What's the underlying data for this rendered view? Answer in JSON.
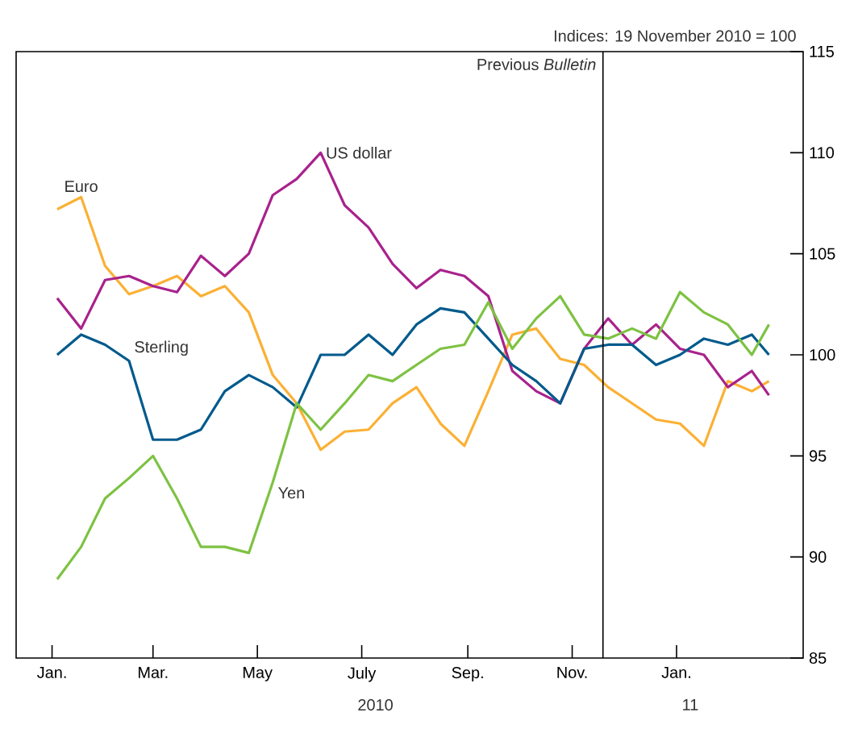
{
  "chart_data": {
    "type": "line",
    "title": "Indices: 19 November 2010 = 100",
    "x": [
      "2010-01-04",
      "2010-01-18",
      "2010-02-01",
      "2010-02-15",
      "2010-03-01",
      "2010-03-15",
      "2010-03-29",
      "2010-04-12",
      "2010-04-26",
      "2010-05-10",
      "2010-05-24",
      "2010-06-07",
      "2010-06-21",
      "2010-07-05",
      "2010-07-19",
      "2010-08-02",
      "2010-08-16",
      "2010-08-30",
      "2010-09-13",
      "2010-09-27",
      "2010-10-11",
      "2010-10-25",
      "2010-11-08",
      "2010-11-22",
      "2010-12-06",
      "2010-12-20",
      "2011-01-03",
      "2011-01-17",
      "2011-01-31",
      "2011-02-14",
      "2011-02-24"
    ],
    "series": [
      {
        "name": "Euro",
        "color": "#fbb034",
        "values": [
          107.2,
          107.8,
          104.4,
          103.0,
          103.4,
          103.9,
          102.9,
          103.4,
          102.1,
          99.0,
          97.6,
          95.3,
          96.2,
          96.3,
          97.6,
          98.4,
          96.6,
          95.5,
          98.2,
          101.0,
          101.3,
          99.8,
          99.5,
          98.4,
          97.6,
          96.8,
          96.6,
          95.5,
          98.7,
          98.2,
          98.7
        ]
      },
      {
        "name": "US dollar",
        "color": "#a8228c",
        "values": [
          102.8,
          101.3,
          103.7,
          103.9,
          103.4,
          103.1,
          104.9,
          103.9,
          105.0,
          107.9,
          108.7,
          110.0,
          107.4,
          106.3,
          104.5,
          103.3,
          104.2,
          103.9,
          102.9,
          99.2,
          98.2,
          97.6,
          100.3,
          101.8,
          100.5,
          101.5,
          100.3,
          100.0,
          98.4,
          99.2,
          98.0
        ]
      },
      {
        "name": "Sterling",
        "color": "#005a8c",
        "values": [
          100.0,
          101.0,
          100.5,
          99.7,
          95.8,
          95.8,
          96.3,
          98.2,
          99.0,
          98.4,
          97.4,
          100.0,
          100.0,
          101.0,
          100.0,
          101.5,
          102.3,
          102.1,
          100.8,
          99.5,
          98.7,
          97.6,
          100.3,
          100.5,
          100.5,
          99.5,
          100.0,
          100.8,
          100.5,
          101.0,
          100.0
        ]
      },
      {
        "name": "Yen",
        "color": "#7dc242",
        "values": [
          88.9,
          90.5,
          92.9,
          93.9,
          95.0,
          92.9,
          90.5,
          90.5,
          90.2,
          93.7,
          97.6,
          96.3,
          97.6,
          99.0,
          98.7,
          99.5,
          100.3,
          100.5,
          102.6,
          100.3,
          101.8,
          102.9,
          101.0,
          100.8,
          101.3,
          100.8,
          103.1,
          102.1,
          101.5,
          100.0,
          101.5
        ]
      }
    ],
    "xlim": [
      "2009-12-11",
      "2011-03-16"
    ],
    "xticks": [
      {
        "value": "2010-01-01",
        "label": "Jan."
      },
      {
        "value": "2010-03-01",
        "label": "Mar."
      },
      {
        "value": "2010-05-01",
        "label": "May"
      },
      {
        "value": "2010-07-01",
        "label": "July"
      },
      {
        "value": "2010-09-01",
        "label": "Sep."
      },
      {
        "value": "2010-11-01",
        "label": "Nov."
      },
      {
        "value": "2011-01-01",
        "label": "Jan."
      }
    ],
    "ylim": [
      85,
      115
    ],
    "yticks": [
      85,
      90,
      95,
      100,
      105,
      110,
      115
    ],
    "ref_lines": [
      {
        "axis": "x",
        "value": "2010-11-19",
        "label": "Previous *Bulletin*"
      }
    ],
    "annotations": [
      "2010",
      "11"
    ],
    "grid": false,
    "line_style": "solid",
    "marker": "none"
  }
}
